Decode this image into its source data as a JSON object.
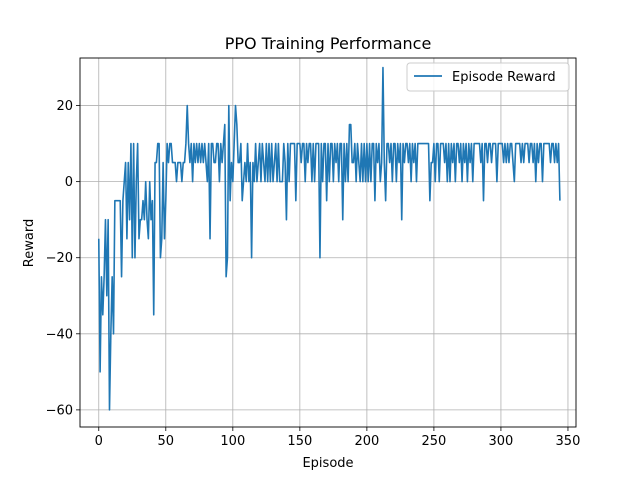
{
  "chart_data": {
    "type": "line",
    "title": "PPO Training Performance",
    "xlabel": "Episode",
    "ylabel": "Reward",
    "xlim": [
      -14,
      356
    ],
    "ylim": [
      -64.5,
      32.5
    ],
    "xticks": [
      0,
      50,
      100,
      150,
      200,
      250,
      300,
      350
    ],
    "yticks": [
      -60,
      -40,
      -20,
      0,
      20
    ],
    "grid": true,
    "legend_position": "top-right",
    "series": [
      {
        "name": "Episode Reward",
        "color": "#1f77b4",
        "values": [
          -15,
          -50,
          -25,
          -35,
          -25,
          -10,
          -30,
          -10,
          -60,
          -40,
          -25,
          -40,
          -5,
          -5,
          -5,
          -5,
          -5,
          -25,
          -5,
          0,
          5,
          -15,
          5,
          -10,
          10,
          -20,
          10,
          -20,
          0,
          10,
          -15,
          -10,
          -10,
          -5,
          -10,
          0,
          -10,
          -15,
          0,
          -10,
          -5,
          -35,
          5,
          5,
          10,
          10,
          -20,
          -15,
          5,
          -15,
          -5,
          10,
          5,
          10,
          10,
          5,
          5,
          5,
          0,
          5,
          5,
          5,
          0,
          5,
          5,
          10,
          20,
          10,
          5,
          10,
          0,
          10,
          5,
          10,
          5,
          10,
          5,
          10,
          5,
          10,
          5,
          0,
          10,
          -15,
          10,
          10,
          5,
          5,
          10,
          10,
          0,
          10,
          5,
          10,
          15,
          -25,
          -20,
          20,
          -5,
          5,
          0,
          10,
          20,
          15,
          5,
          5,
          10,
          -5,
          0,
          5,
          0,
          10,
          0,
          5,
          -20,
          5,
          0,
          10,
          0,
          5,
          10,
          0,
          10,
          5,
          0,
          10,
          0,
          10,
          0,
          10,
          0,
          5,
          10,
          0,
          10,
          0,
          0,
          0,
          10,
          5,
          -10,
          10,
          0,
          10,
          10,
          10,
          10,
          -5,
          10,
          10,
          10,
          5,
          10,
          10,
          0,
          10,
          5,
          10,
          10,
          0,
          10,
          0,
          10,
          10,
          10,
          -20,
          10,
          0,
          10,
          10,
          -5,
          10,
          0,
          10,
          10,
          0,
          10,
          5,
          10,
          0,
          10,
          10,
          -10,
          10,
          0,
          10,
          0,
          15,
          15,
          5,
          5,
          10,
          0,
          10,
          5,
          0,
          10,
          0,
          10,
          0,
          10,
          0,
          10,
          0,
          10,
          10,
          -5,
          10,
          5,
          10,
          0,
          5,
          30,
          5,
          -5,
          10,
          10,
          5,
          10,
          0,
          10,
          10,
          0,
          10,
          5,
          10,
          -10,
          10,
          5,
          10,
          10,
          5,
          10,
          0,
          10,
          5,
          10,
          0,
          10,
          10,
          10,
          10,
          10,
          10,
          10,
          10,
          10,
          -5,
          5,
          5,
          10,
          0,
          10,
          10,
          0,
          10,
          10,
          10,
          5,
          10,
          0,
          10,
          0,
          10,
          5,
          10,
          0,
          10,
          10,
          5,
          10,
          0,
          10,
          5,
          10,
          0,
          10,
          5,
          10,
          0,
          10,
          10,
          10,
          10,
          10,
          5,
          10,
          -5,
          10,
          10,
          5,
          10,
          10,
          5,
          10,
          10,
          10,
          0,
          10,
          10,
          10,
          10,
          5,
          10,
          5,
          10,
          5,
          10,
          10,
          5,
          0,
          10,
          10,
          10,
          10,
          5,
          10,
          5,
          10,
          10,
          10,
          5,
          10,
          10,
          5,
          10,
          0,
          10,
          5,
          10,
          10,
          0,
          10,
          10,
          10,
          10,
          10,
          5,
          10,
          10,
          5,
          10,
          5,
          10,
          -5
        ]
      }
    ]
  }
}
